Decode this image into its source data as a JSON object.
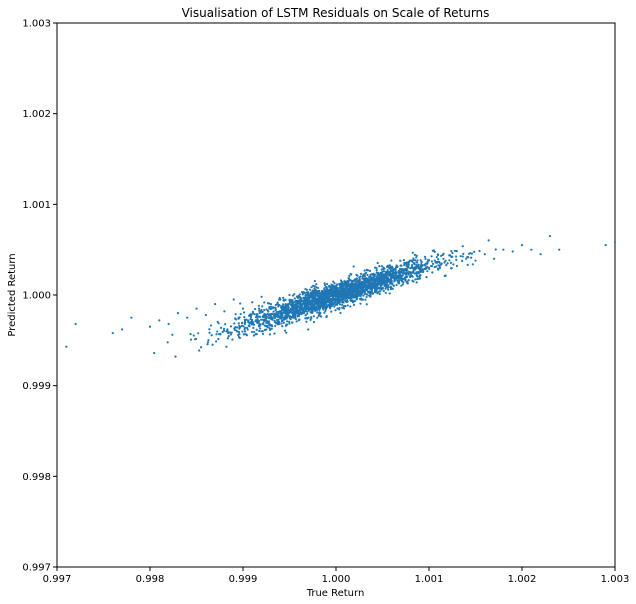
{
  "chart_data": {
    "type": "scatter",
    "title": "Visualisation of LSTM Residuals on Scale of Returns",
    "xlabel": "True Return",
    "ylabel": "Predicted Return",
    "xlim": [
      0.997,
      1.003
    ],
    "ylim": [
      0.997,
      1.003
    ],
    "xticks": [
      "0.997",
      "0.998",
      "0.999",
      "1.000",
      "1.001",
      "1.002",
      "1.003"
    ],
    "yticks": [
      "0.997",
      "0.998",
      "0.999",
      "1.000",
      "1.001",
      "1.002",
      "1.003"
    ],
    "grid": false,
    "series": [
      {
        "color": "#1f77b4",
        "trend": {
          "slope": 0.333,
          "intercept_at_1": 1.0
        },
        "x": [
          0.9971,
          0.9972,
          0.9976,
          0.9977,
          0.9978,
          0.998,
          0.9981,
          0.9982,
          0.9983,
          0.9984,
          0.9985,
          0.9986,
          0.9987,
          0.9988,
          0.9989,
          0.999,
          0.9991,
          0.9992,
          0.9993,
          0.9994,
          0.9995,
          0.9996,
          0.9997,
          0.9998,
          0.9999,
          1.0,
          1.0001,
          1.0002,
          1.0003,
          1.0004,
          1.0005,
          1.0006,
          1.0007,
          1.0008,
          1.0009,
          1.001,
          1.0011,
          1.0012,
          1.0013,
          1.0014,
          1.0015,
          1.0016,
          1.0017,
          1.0018,
          1.0019,
          1.002,
          1.0021,
          1.0022,
          1.0023,
          1.0024,
          1.0029,
          1.003
        ],
        "y": [
          0.99943,
          0.99968,
          0.99958,
          0.99962,
          0.99975,
          0.99965,
          0.99972,
          0.99968,
          0.9998,
          0.99975,
          0.99985,
          0.99978,
          0.9999,
          0.99982,
          0.99995,
          0.99985,
          0.99992,
          0.99998,
          0.9999,
          0.99995,
          1.0,
          0.99997,
          1.00003,
          1.0,
          1.00005,
          1.0,
          1.00008,
          1.00005,
          1.00012,
          1.0001,
          1.00015,
          1.0002,
          1.00018,
          1.00025,
          1.0002,
          1.0003,
          1.00028,
          1.00035,
          1.00032,
          1.0004,
          1.00038,
          1.00045,
          1.0004,
          1.0005,
          1.00048,
          1.00055,
          1.0005,
          1.00045,
          1.00065,
          1.0005,
          1.00055,
          1.00058
        ]
      }
    ]
  }
}
